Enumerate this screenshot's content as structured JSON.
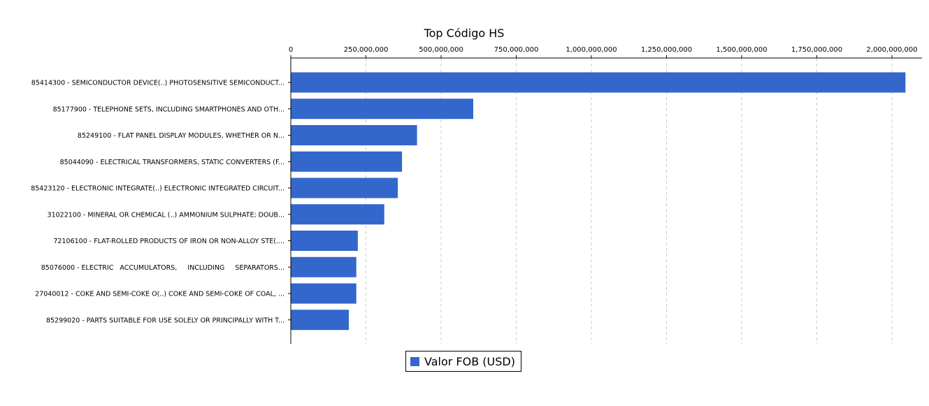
{
  "chart_data": {
    "type": "bar",
    "orientation": "horizontal",
    "title": "Top Código HS",
    "x_axis_position": "top",
    "xlim": [
      0,
      2100000000
    ],
    "x_ticks": [
      0,
      250000000,
      500000000,
      750000000,
      1000000000,
      1250000000,
      1500000000,
      1750000000,
      2000000000
    ],
    "x_tick_labels": [
      "0",
      "250,000,000",
      "500,000,000",
      "750,000,000",
      "1,000,000,000",
      "1,250,000,000",
      "1,500,000,000",
      "1,750,000,000",
      "2,000,000,000"
    ],
    "grid": "vertical dashed",
    "legend_placement": "bottom-center",
    "color": "#3367cc",
    "categories": [
      "85414300 - SEMICONDUCTOR DEVICE(..) PHOTOSENSITIVE SEMICONDUCT...",
      "85177900 - TELEPHONE SETS, INCLUDING SMARTPHONES AND OTH...",
      "85249100 - FLAT PANEL DISPLAY MODULES, WHETHER OR N...",
      "85044090 - ELECTRICAL TRANSFORMERS, STATIC CONVERTERS (F...",
      "85423120 - ELECTRONIC INTEGRATE(..) ELECTRONIC INTEGRATED CIRCUIT...",
      "31022100 - MINERAL OR CHEMICAL (..) AMMONIUM SULPHATE; DOUB...",
      "72106100 - FLAT-ROLLED PRODUCTS OF IRON OR NON-ALLOY STE(....",
      "85076000 - ELECTRIC   ACCUMULATORS,     INCLUDING     SEPARATORS...",
      "27040012 - COKE AND SEMI-COKE O(..) COKE AND SEMI-COKE OF COAL, ...",
      "85299020 - PARTS SUITABLE FOR USE SOLELY OR PRINCIPALLY WITH T..."
    ],
    "series": [
      {
        "name": "Valor FOB (USD)",
        "values": [
          2045000000,
          607000000,
          420000000,
          370000000,
          356000000,
          311000000,
          223000000,
          218000000,
          218000000,
          193000000
        ]
      }
    ]
  }
}
